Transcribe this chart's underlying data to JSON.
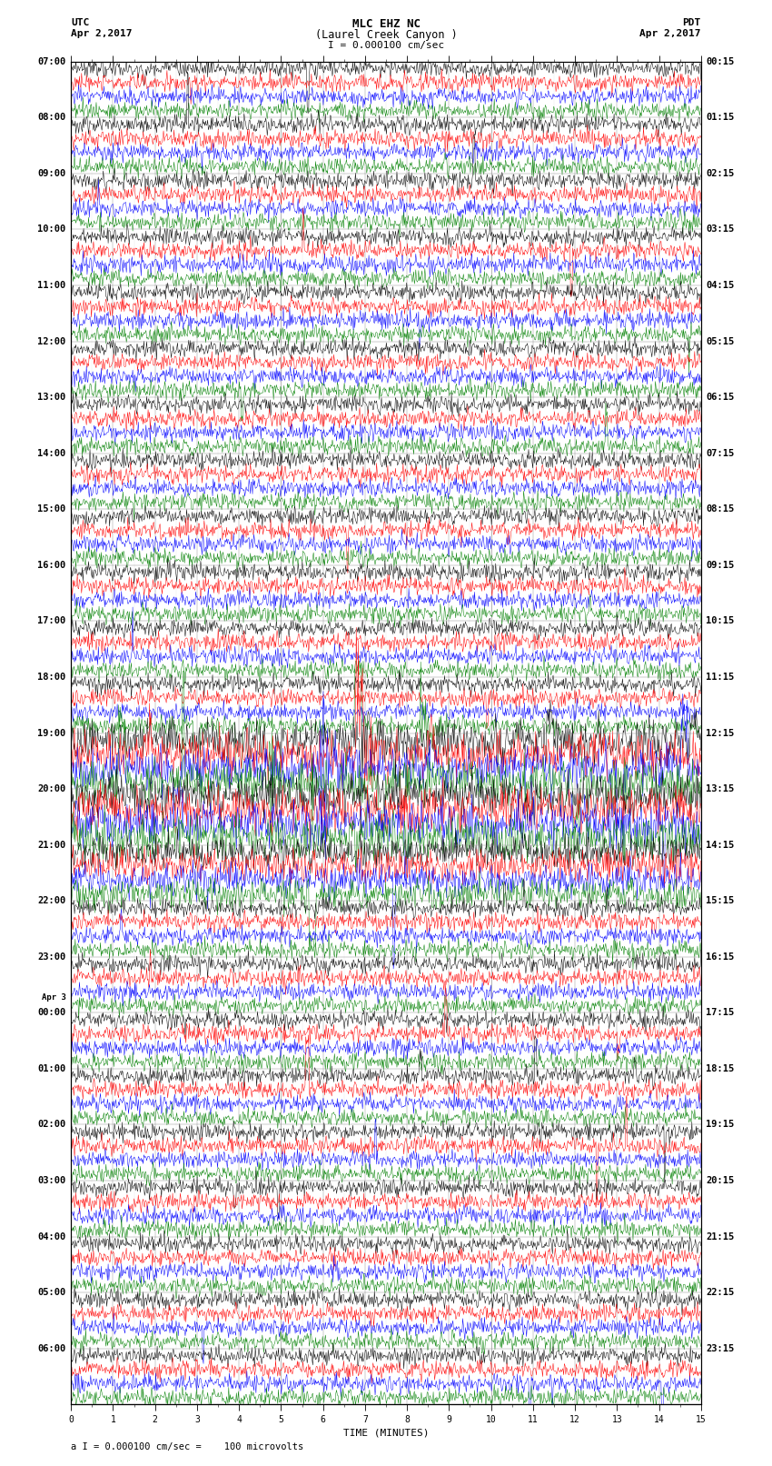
{
  "title_line1": "MLC EHZ NC",
  "title_line2": "(Laurel Creek Canyon )",
  "scale_label": "I = 0.000100 cm/sec",
  "utc_label": "UTC",
  "pdt_label": "PDT",
  "date_left": "Apr 2,2017",
  "date_right": "Apr 2,2017",
  "xlabel": "TIME (MINUTES)",
  "footer_label": "a I = 0.000100 cm/sec =    100 microvolts",
  "bg_color": "#ffffff",
  "colors": [
    "black",
    "red",
    "blue",
    "green"
  ],
  "minutes_per_row": 15,
  "noise_base": 0.3,
  "left_labels": [
    "07:00",
    "08:00",
    "09:00",
    "10:00",
    "11:00",
    "12:00",
    "13:00",
    "14:00",
    "15:00",
    "16:00",
    "17:00",
    "18:00",
    "19:00",
    "20:00",
    "21:00",
    "22:00",
    "23:00",
    "00:00",
    "01:00",
    "02:00",
    "03:00",
    "04:00",
    "05:00",
    "06:00"
  ],
  "apr3_idx": 17,
  "right_labels": [
    "00:15",
    "01:15",
    "02:15",
    "03:15",
    "04:15",
    "05:15",
    "06:15",
    "07:15",
    "08:15",
    "09:15",
    "10:15",
    "11:15",
    "12:15",
    "13:15",
    "14:15",
    "15:15",
    "16:15",
    "17:15",
    "18:15",
    "19:15",
    "20:15",
    "21:15",
    "22:15",
    "23:15"
  ],
  "fig_width": 8.5,
  "fig_height": 16.13,
  "dpi": 100,
  "xmin": 0,
  "xmax": 15,
  "num_hour_blocks": 24,
  "traces_per_block": 4,
  "samples_per_trace": 900
}
